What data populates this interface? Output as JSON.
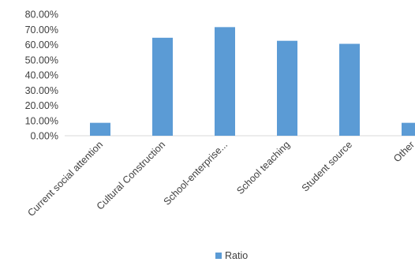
{
  "chart_data": {
    "type": "bar",
    "categories": [
      "Current social attention",
      "Cultural Construction",
      "School-enterprise...",
      "School teaching",
      "Student source",
      "Other"
    ],
    "series": [
      {
        "name": "Ratio",
        "values": [
          8.5,
          64.5,
          71.5,
          62.5,
          60.5,
          8.5
        ],
        "color": "#5b9bd5"
      }
    ],
    "yticks": [
      "0.00%",
      "10.00%",
      "20.00%",
      "30.00%",
      "40.00%",
      "50.00%",
      "60.00%",
      "70.00%",
      "80.00%"
    ],
    "ylim": [
      0,
      80
    ],
    "gridlines": false,
    "legend_position": "bottom",
    "title": "",
    "xlabel": "",
    "ylabel": ""
  }
}
